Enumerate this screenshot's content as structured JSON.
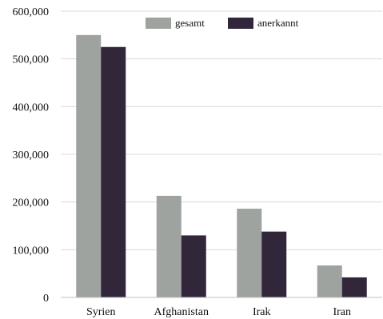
{
  "chart_data": {
    "type": "bar",
    "categories": [
      "Syrien",
      "Afghanistan",
      "Irak",
      "Iran"
    ],
    "series": [
      {
        "name": "gesamt",
        "values": [
          550000,
          213000,
          186000,
          67000
        ],
        "color": "#9ea39f"
      },
      {
        "name": "anerkannt",
        "values": [
          525000,
          130000,
          138000,
          42000
        ],
        "color": "#32263a"
      }
    ],
    "ylim": [
      0,
      600000
    ],
    "yticks": [
      0,
      100000,
      200000,
      300000,
      400000,
      500000,
      600000
    ],
    "ytick_labels": [
      "0",
      "100,000",
      "200,000",
      "300,000",
      "400,000",
      "500,000",
      "600,000"
    ],
    "grid": true,
    "legend_position": "top-right",
    "title": "",
    "xlabel": "",
    "ylabel": ""
  }
}
